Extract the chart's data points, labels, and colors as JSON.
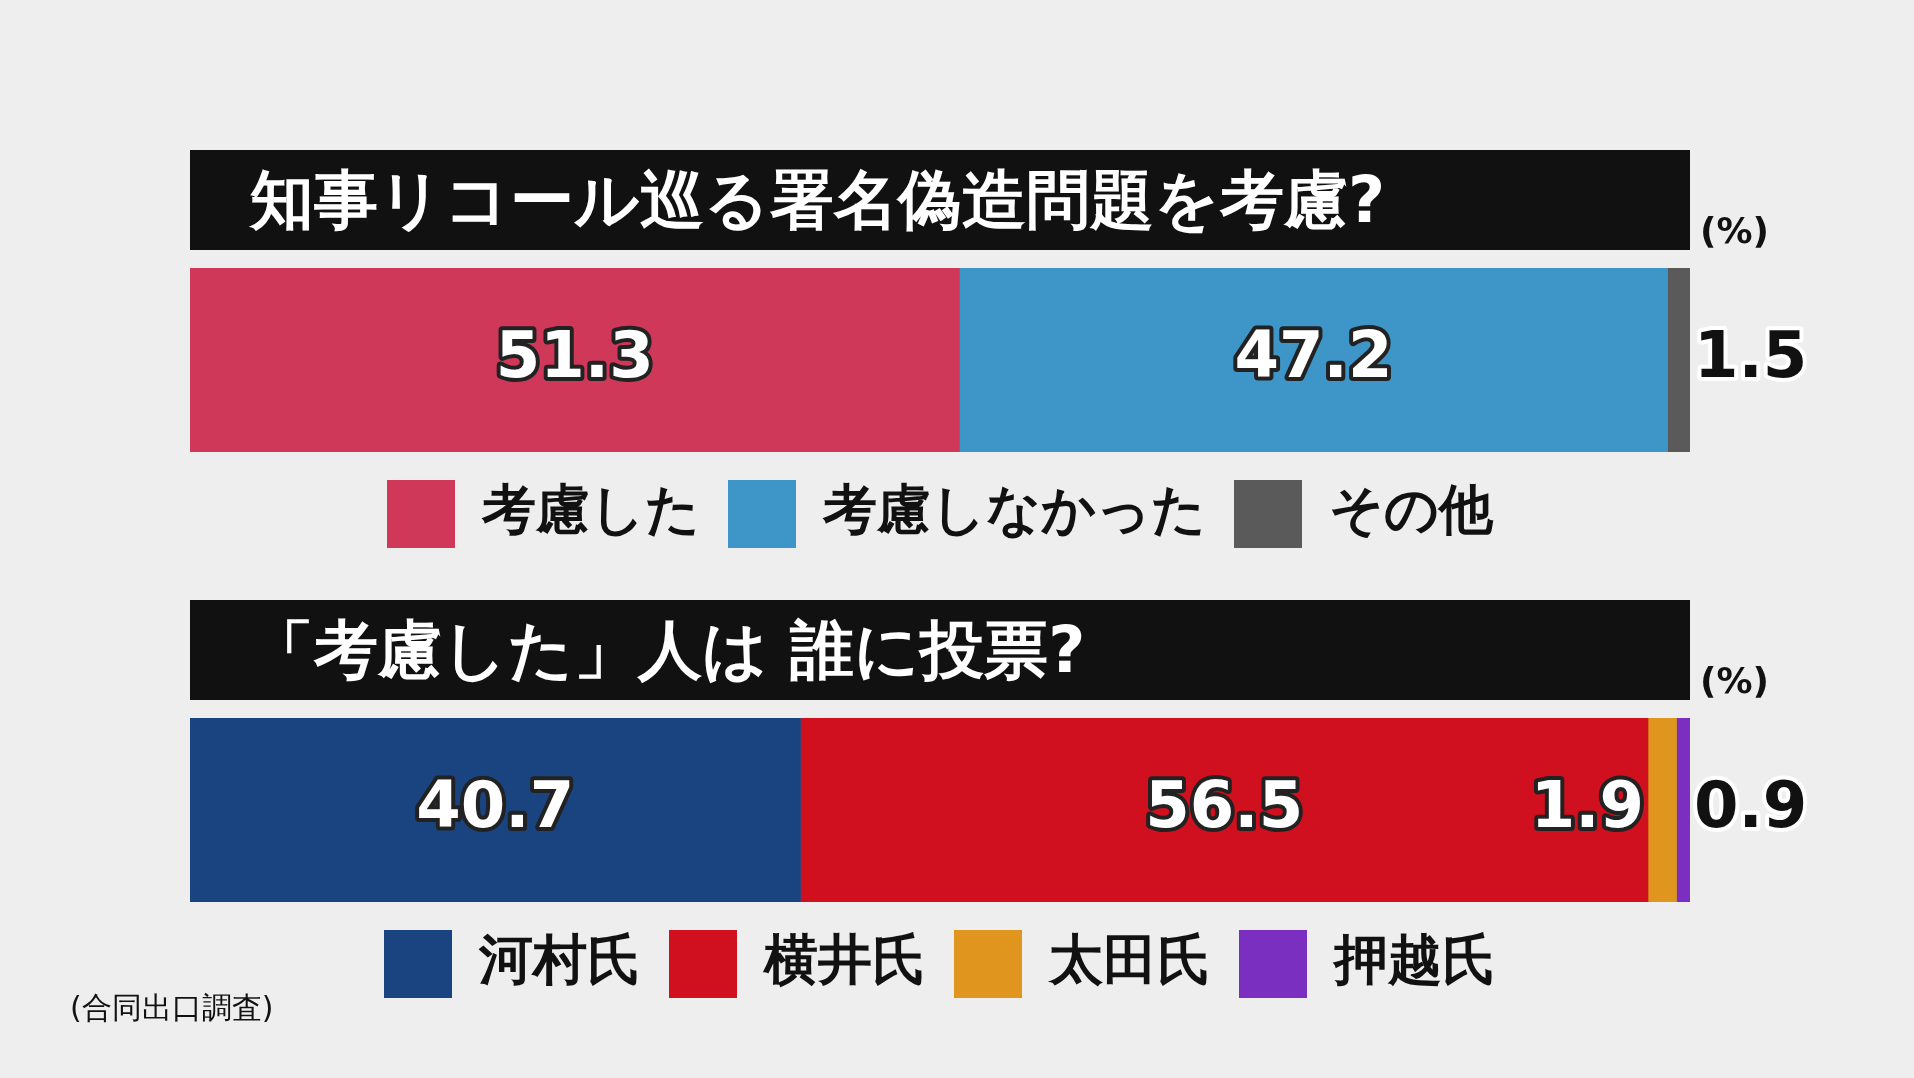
{
  "chart_data": [
    {
      "type": "bar",
      "orientation": "horizontal",
      "stacked": true,
      "title": "知事リコール巡る署名偽造問題を考慮?",
      "xlabel": "(%)",
      "categories": [
        null
      ],
      "xlim": [
        0,
        100
      ],
      "tick_labels": false,
      "legend": "bottom",
      "data_labels": true,
      "series": [
        {
          "name": "考慮した",
          "color": "#d0385a",
          "values": [
            51.3
          ]
        },
        {
          "name": "考慮しなかった",
          "color": "#3d95c8",
          "values": [
            47.2
          ]
        },
        {
          "name": "その他",
          "color": "#5a5a5a",
          "values": [
            1.5
          ]
        }
      ]
    },
    {
      "type": "bar",
      "orientation": "horizontal",
      "stacked": true,
      "title": "「考慮した」人は 誰に投票?",
      "xlabel": "(%)",
      "categories": [
        null
      ],
      "xlim": [
        0,
        100
      ],
      "tick_labels": false,
      "legend": "bottom",
      "data_labels": true,
      "annotations": [
        "(合同出口調査)"
      ],
      "series": [
        {
          "name": "河村氏",
          "color": "#1a4480",
          "values": [
            40.7
          ]
        },
        {
          "name": "横井氏",
          "color": "#d0101e",
          "values": [
            56.5
          ]
        },
        {
          "name": "太田氏",
          "color": "#e0961e",
          "values": [
            1.9
          ]
        },
        {
          "name": "押越氏",
          "color": "#7a2fc0",
          "values": [
            0.9
          ]
        }
      ]
    }
  ]
}
